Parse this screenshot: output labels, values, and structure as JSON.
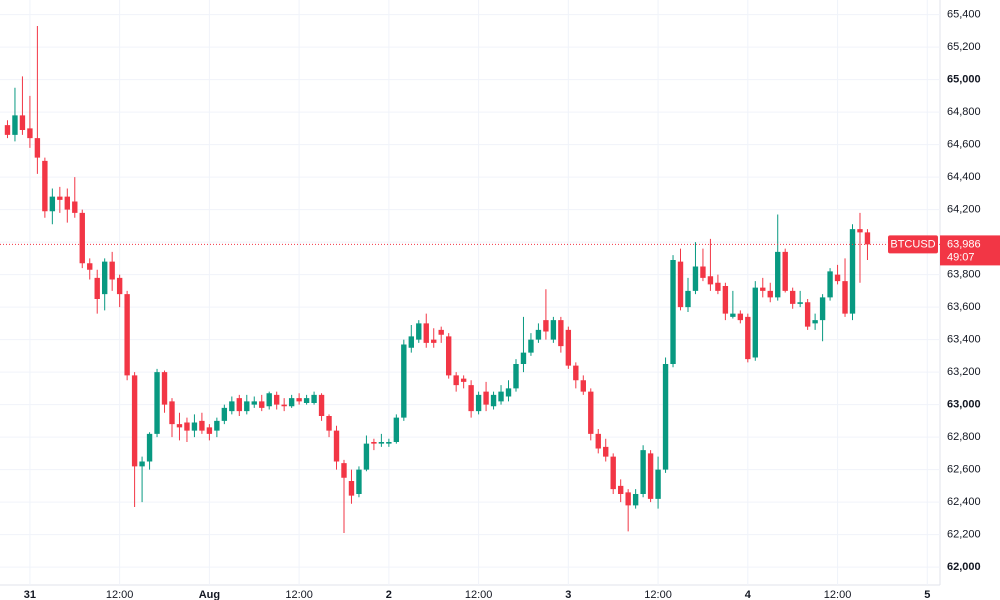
{
  "chart_data": {
    "type": "candlestick",
    "symbol": "BTCUSD",
    "last_price": 63986,
    "last_price_label": "63,986",
    "countdown": "49:07",
    "up_color": "#089981",
    "down_color": "#f23645",
    "grid": true,
    "xlim": [
      -4,
      121.7
    ],
    "ylim": [
      61890,
      65490
    ],
    "xticks": [
      {
        "value": 0,
        "label": "31"
      },
      {
        "value": 12,
        "label": "12:00"
      },
      {
        "value": 24,
        "label": "Aug"
      },
      {
        "value": 36,
        "label": "12:00"
      },
      {
        "value": 48,
        "label": "2"
      },
      {
        "value": 60,
        "label": "12:00"
      },
      {
        "value": 72,
        "label": "3"
      },
      {
        "value": 84,
        "label": "12:00"
      },
      {
        "value": 96,
        "label": "4"
      },
      {
        "value": 108,
        "label": "12:00"
      },
      {
        "value": 120,
        "label": "5"
      }
    ],
    "yticks": [
      {
        "value": 62000,
        "label": "62,000"
      },
      {
        "value": 62200,
        "label": "62,200"
      },
      {
        "value": 62400,
        "label": "62,400"
      },
      {
        "value": 62600,
        "label": "62,600"
      },
      {
        "value": 62800,
        "label": "62,800"
      },
      {
        "value": 63000,
        "label": "63,000"
      },
      {
        "value": 63200,
        "label": "63,200"
      },
      {
        "value": 63400,
        "label": "63,400"
      },
      {
        "value": 63600,
        "label": "63,600"
      },
      {
        "value": 63800,
        "label": "63,800"
      },
      {
        "value": 64000,
        "label": "64,000"
      },
      {
        "value": 64200,
        "label": "64,200"
      },
      {
        "value": 64400,
        "label": "64,400"
      },
      {
        "value": 64600,
        "label": "64,600"
      },
      {
        "value": 64800,
        "label": "64,800"
      },
      {
        "value": 65000,
        "label": "65,000"
      },
      {
        "value": 65200,
        "label": "65,200"
      },
      {
        "value": 65400,
        "label": "65,400"
      }
    ],
    "x": [
      -3,
      -2,
      -1,
      0,
      1,
      2,
      3,
      4,
      5,
      6,
      7,
      8,
      9,
      10,
      11,
      12,
      13,
      14,
      15,
      16,
      17,
      18,
      19,
      20,
      21,
      22,
      23,
      24,
      25,
      26,
      27,
      28,
      29,
      30,
      31,
      32,
      33,
      34,
      35,
      36,
      37,
      38,
      39,
      40,
      41,
      42,
      43,
      44,
      45,
      46,
      47,
      48,
      49,
      50,
      51,
      52,
      53,
      54,
      55,
      56,
      57,
      58,
      59,
      60,
      61,
      62,
      63,
      64,
      65,
      66,
      67,
      68,
      69,
      70,
      71,
      72,
      73,
      74,
      75,
      76,
      77,
      78,
      79,
      80,
      81,
      82,
      83,
      84,
      85,
      86,
      87,
      88,
      89,
      90,
      91,
      92,
      93,
      94,
      95,
      96,
      97,
      98,
      99,
      100,
      101,
      102,
      103,
      104,
      105,
      106,
      107,
      108,
      109,
      110,
      111,
      112
    ],
    "open": [
      64720,
      64660,
      64780,
      64700,
      64640,
      64500,
      64190,
      64280,
      64280,
      64250,
      64180,
      63870,
      63780,
      63680,
      63880,
      63780,
      63680,
      63180,
      62620,
      62650,
      62820,
      63200,
      63020,
      62880,
      62890,
      62840,
      62900,
      62860,
      62840,
      62900,
      62960,
      63040,
      62960,
      63000,
      63020,
      62990,
      63060,
      63000,
      62990,
      63040,
      63010,
      63010,
      63060,
      62930,
      62840,
      62640,
      62530,
      62450,
      62600,
      62770,
      62760,
      62760,
      62770,
      62920,
      63350,
      63400,
      63500,
      63400,
      63460,
      63420,
      63180,
      63160,
      63120,
      62960,
      63080,
      62990,
      63020,
      63050,
      63100,
      63250,
      63320,
      63400,
      63520,
      63400,
      63520,
      63460,
      63240,
      63150,
      63080,
      62820,
      62740,
      62680,
      62500,
      62460,
      62380,
      62450,
      62700,
      62420,
      62600,
      63250,
      63880,
      63600,
      63700,
      63850,
      63790,
      63750,
      63730,
      63540,
      63560,
      63540,
      63290,
      63720,
      63700,
      63660,
      63940,
      63700,
      63620,
      63630,
      63500,
      63520,
      63660,
      63800,
      63760,
      63560,
      64080,
      64060
    ],
    "high": [
      64750,
      64950,
      65020,
      64900,
      65330,
      64520,
      64330,
      64340,
      64330,
      64400,
      64200,
      63900,
      63830,
      63900,
      63940,
      63800,
      63700,
      63200,
      62680,
      62830,
      63220,
      63210,
      63040,
      62950,
      62920,
      62940,
      62950,
      62880,
      62920,
      63000,
      63050,
      63060,
      63060,
      63050,
      63060,
      63080,
      63080,
      63040,
      63060,
      63070,
      63060,
      63080,
      63070,
      62940,
      62870,
      62660,
      62600,
      62620,
      62810,
      62790,
      62820,
      62790,
      62940,
      63400,
      63490,
      63520,
      63560,
      63470,
      63480,
      63440,
      63200,
      63180,
      63150,
      63080,
      63140,
      63080,
      63120,
      63150,
      63280,
      63540,
      63440,
      63500,
      63710,
      63540,
      63540,
      63480,
      63260,
      63180,
      63100,
      62850,
      62790,
      62700,
      62540,
      62480,
      62480,
      62750,
      62720,
      62680,
      63290,
      63920,
      63960,
      63780,
      64000,
      63960,
      64020,
      63800,
      63750,
      63700,
      63580,
      63560,
      63760,
      63780,
      63750,
      64170,
      63960,
      63720,
      63700,
      63650,
      63560,
      63680,
      63840,
      63860,
      63900,
      64110,
      64180,
      64080
    ],
    "low": [
      64640,
      64620,
      64660,
      64580,
      64420,
      64150,
      64110,
      64180,
      64120,
      64150,
      63840,
      63770,
      63560,
      63580,
      63700,
      63600,
      63150,
      62370,
      62400,
      62600,
      62800,
      62950,
      62800,
      62780,
      62770,
      62800,
      62820,
      62780,
      62800,
      62880,
      62940,
      62930,
      62940,
      62980,
      62960,
      62970,
      62970,
      62960,
      62980,
      63000,
      63000,
      63000,
      62900,
      62800,
      62600,
      62210,
      62390,
      62430,
      62590,
      62720,
      62740,
      62740,
      62760,
      62900,
      63320,
      63380,
      63350,
      63350,
      63380,
      63160,
      63080,
      63100,
      62920,
      62940,
      62960,
      62970,
      63000,
      63020,
      63080,
      63200,
      63300,
      63380,
      63400,
      63380,
      63320,
      63220,
      63100,
      63060,
      62780,
      62700,
      62650,
      62450,
      62400,
      62220,
      62360,
      62430,
      62400,
      62360,
      62580,
      63230,
      63580,
      63570,
      63680,
      63760,
      63700,
      63680,
      63520,
      63530,
      63500,
      63260,
      63270,
      63660,
      63630,
      63640,
      63690,
      63590,
      63600,
      63460,
      63460,
      63390,
      63640,
      63740,
      63540,
      63520,
      63750,
      63890
    ],
    "close": [
      64660,
      64780,
      64690,
      64640,
      64520,
      64190,
      64280,
      64260,
      64200,
      64180,
      63870,
      63830,
      63650,
      63880,
      63770,
      63680,
      63180,
      62620,
      62650,
      62820,
      63200,
      63000,
      62880,
      62860,
      62840,
      62890,
      62840,
      62820,
      62900,
      62980,
      63020,
      62960,
      63020,
      63020,
      62980,
      63070,
      63000,
      62990,
      63040,
      63020,
      63040,
      63060,
      62930,
      62840,
      62650,
      62550,
      62440,
      62600,
      62760,
      62760,
      62770,
      62770,
      62920,
      63370,
      63420,
      63500,
      63380,
      63380,
      63430,
      63180,
      63120,
      63140,
      62960,
      63060,
      63000,
      63060,
      63080,
      63100,
      63250,
      63320,
      63400,
      63460,
      63450,
      63520,
      63360,
      63240,
      63150,
      63080,
      62820,
      62730,
      62680,
      62480,
      62450,
      62380,
      62450,
      62720,
      62420,
      62600,
      63250,
      63890,
      63600,
      63700,
      63850,
      63780,
      63740,
      63700,
      63560,
      63560,
      63520,
      63280,
      63720,
      63700,
      63660,
      63940,
      63700,
      63620,
      63630,
      63480,
      63520,
      63660,
      63820,
      63760,
      63560,
      64080,
      64060,
      63986
    ]
  }
}
